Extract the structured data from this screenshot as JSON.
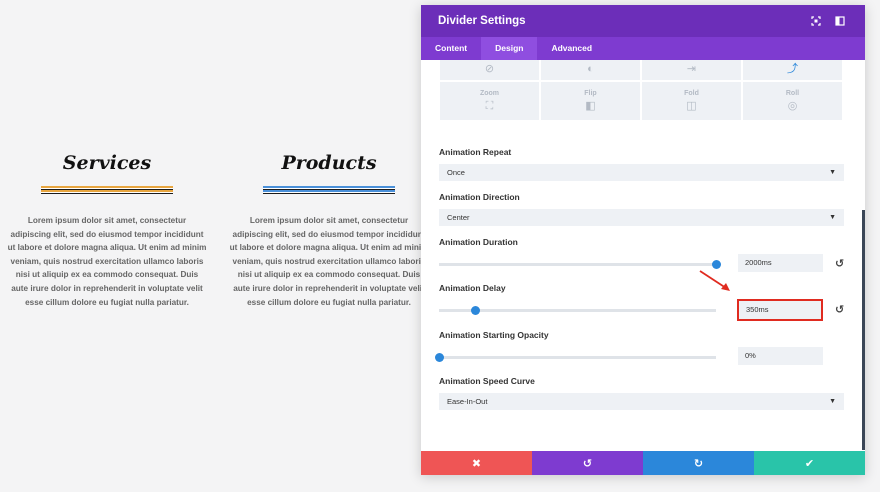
{
  "page": {
    "columns": [
      {
        "title": "Services",
        "body": "Lorem ipsum dolor sit amet, consectetur adipiscing elit, sed do eiusmod tempor incididunt ut labore et dolore magna aliqua. Ut enim ad minim veniam, quis nostrud exercitation ullamco laboris nisi ut aliquip ex ea commodo consequat. Duis aute irure dolor in reprehenderit in voluptate velit esse cillum dolore eu fugiat nulla pariatur."
      },
      {
        "title": "Products",
        "body": "Lorem ipsum dolor sit amet, consectetur adipiscing elit, sed do eiusmod tempor incididunt ut labore et dolore magna aliqua. Ut enim ad minim veniam, quis nostrud exercitation ullamco laboris nisi ut aliquip ex ea commodo consequat. Duis aute irure dolor in reprehenderit in voluptate velit esse cillum dolore eu fugiat nulla pariatur."
      }
    ]
  },
  "panel": {
    "title": "Divider Settings",
    "header_icons": [
      "expand-icon",
      "sidebar-icon"
    ],
    "tabs": [
      {
        "label": "Content",
        "active": false
      },
      {
        "label": "Design",
        "active": true
      },
      {
        "label": "Advanced",
        "active": false
      }
    ],
    "animation_styles_row1": [
      {
        "label": "",
        "icon": "none-icon",
        "glyph": "⊘",
        "active": false
      },
      {
        "label": "",
        "icon": "fade-icon",
        "glyph": "◐",
        "active": false
      },
      {
        "label": "",
        "icon": "slide-icon",
        "glyph": "⇥",
        "active": false
      },
      {
        "label": "",
        "icon": "bounce-icon",
        "glyph": "⤴",
        "active": true
      }
    ],
    "animation_styles_row2": [
      {
        "label": "Zoom",
        "icon": "zoom-icon",
        "glyph": "⛶"
      },
      {
        "label": "Flip",
        "icon": "flip-icon",
        "glyph": "◧"
      },
      {
        "label": "Fold",
        "icon": "fold-icon",
        "glyph": "◫"
      },
      {
        "label": "Roll",
        "icon": "roll-icon",
        "glyph": "◎"
      }
    ],
    "animation_repeat": {
      "label": "Animation Repeat",
      "value": "Once"
    },
    "animation_direction": {
      "label": "Animation Direction",
      "value": "Center"
    },
    "animation_duration": {
      "label": "Animation Duration",
      "value": "2000ms",
      "slider_fraction": 1.0
    },
    "animation_delay": {
      "label": "Animation Delay",
      "value": "350ms",
      "slider_fraction": 0.13
    },
    "animation_starting_opacity": {
      "label": "Animation Starting Opacity",
      "value": "0%",
      "slider_fraction": 0.0
    },
    "animation_speed_curve": {
      "label": "Animation Speed Curve",
      "value": "Ease-In-Out"
    },
    "footer": {
      "discard_glyph": "✖",
      "undo_glyph": "↺",
      "redo_glyph": "↻",
      "save_glyph": "✔"
    },
    "colors": {
      "header": "#6c2eb9",
      "tabs": "#7e3bd0",
      "accent": "#2b87da",
      "highlight": "#e02b20",
      "discard": "#ef5555",
      "save": "#29c4a9"
    }
  }
}
